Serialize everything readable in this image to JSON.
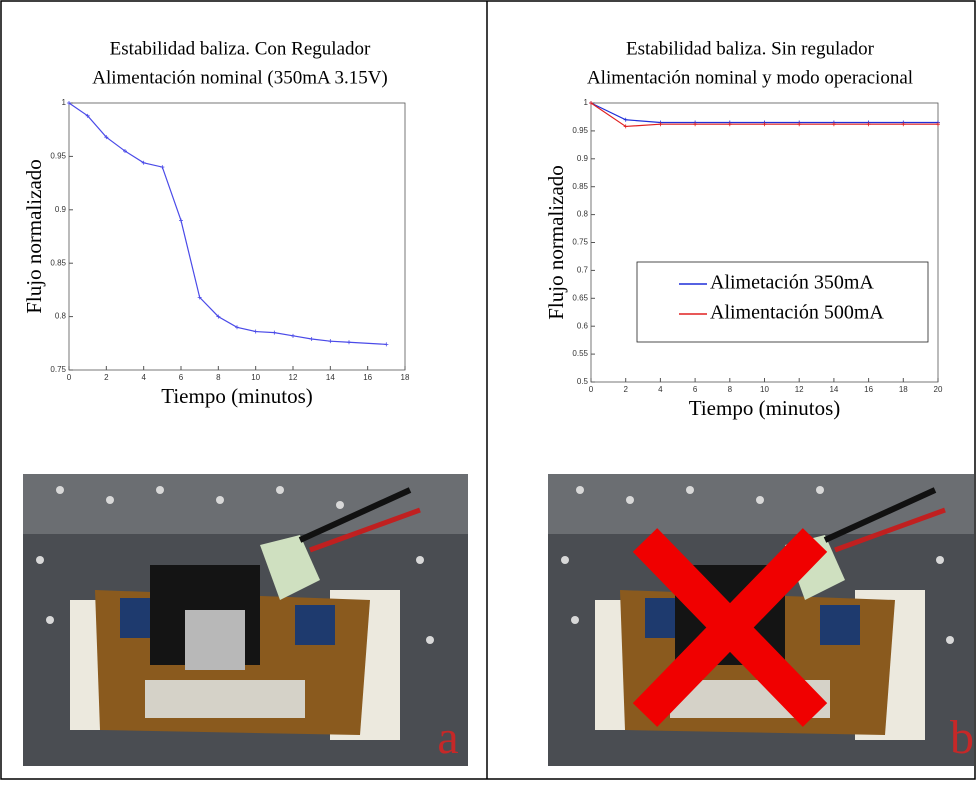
{
  "chart_data": [
    {
      "type": "line",
      "title": "Estabilidad baliza. Con Regulador",
      "subtitle": "Alimentación nominal (350mA  3.15V)",
      "x_label": "Tiempo (minutos)",
      "y_label": "Flujo normalizado",
      "xlim": [
        0,
        18
      ],
      "xticks": [
        0,
        2,
        4,
        6,
        8,
        10,
        12,
        14,
        16,
        18
      ],
      "ylim": [
        0.75,
        1
      ],
      "yticks": [
        0.75,
        0.8,
        0.85,
        0.9,
        0.95,
        1
      ],
      "x": [
        0,
        1,
        2,
        3,
        4,
        5,
        6,
        7,
        8,
        9,
        10,
        11,
        12,
        13,
        14,
        15,
        17
      ],
      "series": [
        {
          "color": "#4a4ae8",
          "values": [
            1.0,
            0.988,
            0.968,
            0.955,
            0.944,
            0.94,
            0.89,
            0.818,
            0.8,
            0.79,
            0.786,
            0.785,
            0.782,
            0.779,
            0.777,
            0.776,
            0.774
          ]
        }
      ]
    },
    {
      "type": "line",
      "title": "Estabilidad baliza. Sin regulador",
      "subtitle": "Alimentación nominal y modo operacional",
      "x_label": "Tiempo (minutos)",
      "y_label": "Flujo normalizado",
      "xlim": [
        0,
        20
      ],
      "xticks": [
        0,
        2,
        4,
        6,
        8,
        10,
        12,
        14,
        16,
        18,
        20
      ],
      "ylim": [
        0.5,
        1
      ],
      "yticks": [
        0.5,
        0.55,
        0.6,
        0.65,
        0.7,
        0.75,
        0.8,
        0.85,
        0.9,
        0.95,
        1
      ],
      "x": [
        0,
        2,
        4,
        6,
        8,
        10,
        12,
        14,
        16,
        18,
        20
      ],
      "legend": "center-right",
      "series": [
        {
          "name": "Alimetación 350mA",
          "color": "#1f2fd8",
          "values": [
            1.0,
            0.97,
            0.965,
            0.965,
            0.965,
            0.965,
            0.965,
            0.965,
            0.965,
            0.965,
            0.965
          ]
        },
        {
          "name": "Alimentación 500mA",
          "color": "#e02020",
          "values": [
            1.0,
            0.958,
            0.962,
            0.962,
            0.962,
            0.962,
            0.962,
            0.962,
            0.962,
            0.962,
            0.962
          ]
        }
      ]
    }
  ],
  "panels": [
    {
      "label": "a"
    },
    {
      "label": "b"
    }
  ]
}
